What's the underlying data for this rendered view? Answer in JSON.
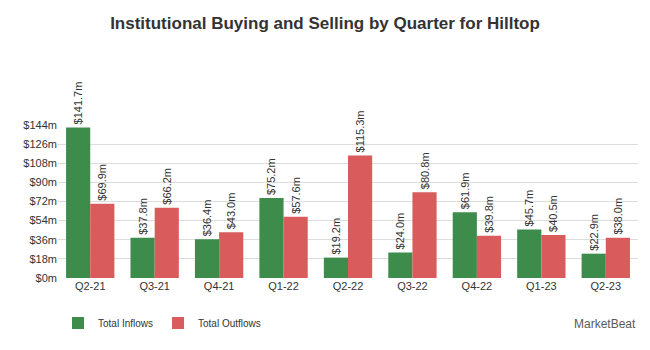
{
  "chart_data": {
    "type": "bar",
    "title": "Institutional Buying and Selling by Quarter for Hilltop",
    "categories": [
      "Q2-21",
      "Q3-21",
      "Q4-21",
      "Q1-22",
      "Q2-22",
      "Q3-22",
      "Q4-22",
      "Q1-23",
      "Q2-23"
    ],
    "series": [
      {
        "name": "Total Inflows",
        "color": "#3d8c4c",
        "values": [
          141.7,
          37.8,
          36.4,
          75.2,
          19.2,
          24.0,
          61.9,
          45.7,
          22.9
        ],
        "value_labels": [
          "$141.7m",
          "$37.8m",
          "$36.4m",
          "$75.2m",
          "$19.2m",
          "$24.0m",
          "$61.9m",
          "$45.7m",
          "$22.9m"
        ]
      },
      {
        "name": "Total Outflows",
        "color": "#d95b5b",
        "values": [
          69.9,
          66.2,
          43.0,
          57.6,
          115.3,
          80.8,
          39.8,
          40.5,
          38.0
        ],
        "value_labels": [
          "$69.9m",
          "$66.2m",
          "$43.0m",
          "$57.6m",
          "$115.3m",
          "$80.8m",
          "$39.8m",
          "$40.5m",
          "$38.0m"
        ]
      }
    ],
    "ylim": [
      0,
      144
    ],
    "yticks": [
      {
        "value": 0,
        "label": "$0m"
      },
      {
        "value": 18,
        "label": "$18m"
      },
      {
        "value": 36,
        "label": "$36m"
      },
      {
        "value": 54,
        "label": "$54m"
      },
      {
        "value": 72,
        "label": "$72m"
      },
      {
        "value": 90,
        "label": "$90m"
      },
      {
        "value": 108,
        "label": "$108m"
      },
      {
        "value": 126,
        "label": "$126m"
      },
      {
        "value": 144,
        "label": "$144m"
      }
    ],
    "grid": true,
    "data_labels": true,
    "legend": "bottom left",
    "annotations": [
      "MarketBeat"
    ]
  }
}
